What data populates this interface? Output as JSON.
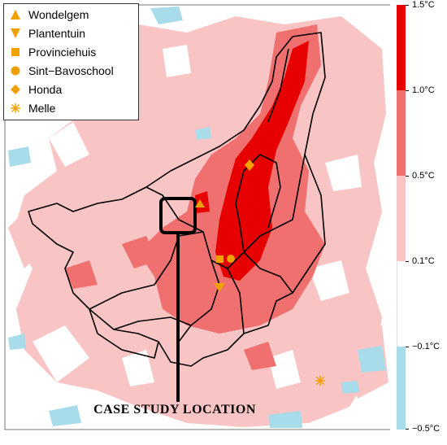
{
  "legend": {
    "items": [
      {
        "label": "Wondelgem",
        "symbol": "triangle-up",
        "color": "#f0a000"
      },
      {
        "label": "Plantentuin",
        "symbol": "triangle-down",
        "color": "#f0a000"
      },
      {
        "label": "Provinciehuis",
        "symbol": "square",
        "color": "#f0a000"
      },
      {
        "label": "Sint−Bavoschool",
        "symbol": "circle",
        "color": "#f0a000"
      },
      {
        "label": "Honda",
        "symbol": "diamond",
        "color": "#f0a000"
      },
      {
        "label": "Melle",
        "symbol": "asterisk",
        "color": "#f0a000"
      }
    ]
  },
  "colorbar": {
    "levels": [
      {
        "label": "1.5°C",
        "color": "#e60000"
      },
      {
        "label": "1.0°C",
        "color": "#f07070"
      },
      {
        "label": "0.5°C",
        "color": "#f9c4c4"
      },
      {
        "label": "0.1°C",
        "color": "#ffffff"
      },
      {
        "label": "−0.1°C",
        "color": "#a8dcea"
      },
      {
        "label": "−0.5°C",
        "color": ""
      }
    ]
  },
  "annotation": {
    "text": "CASE STUDY LOCATION"
  },
  "colors": {
    "strong_warm": "#e60000",
    "moderate_warm": "#f07070",
    "light_warm": "#f9c4c4",
    "neutral": "#ffffff",
    "cool": "#a8dcea",
    "station_marker": "#f0a000",
    "boundary": "#000000"
  }
}
